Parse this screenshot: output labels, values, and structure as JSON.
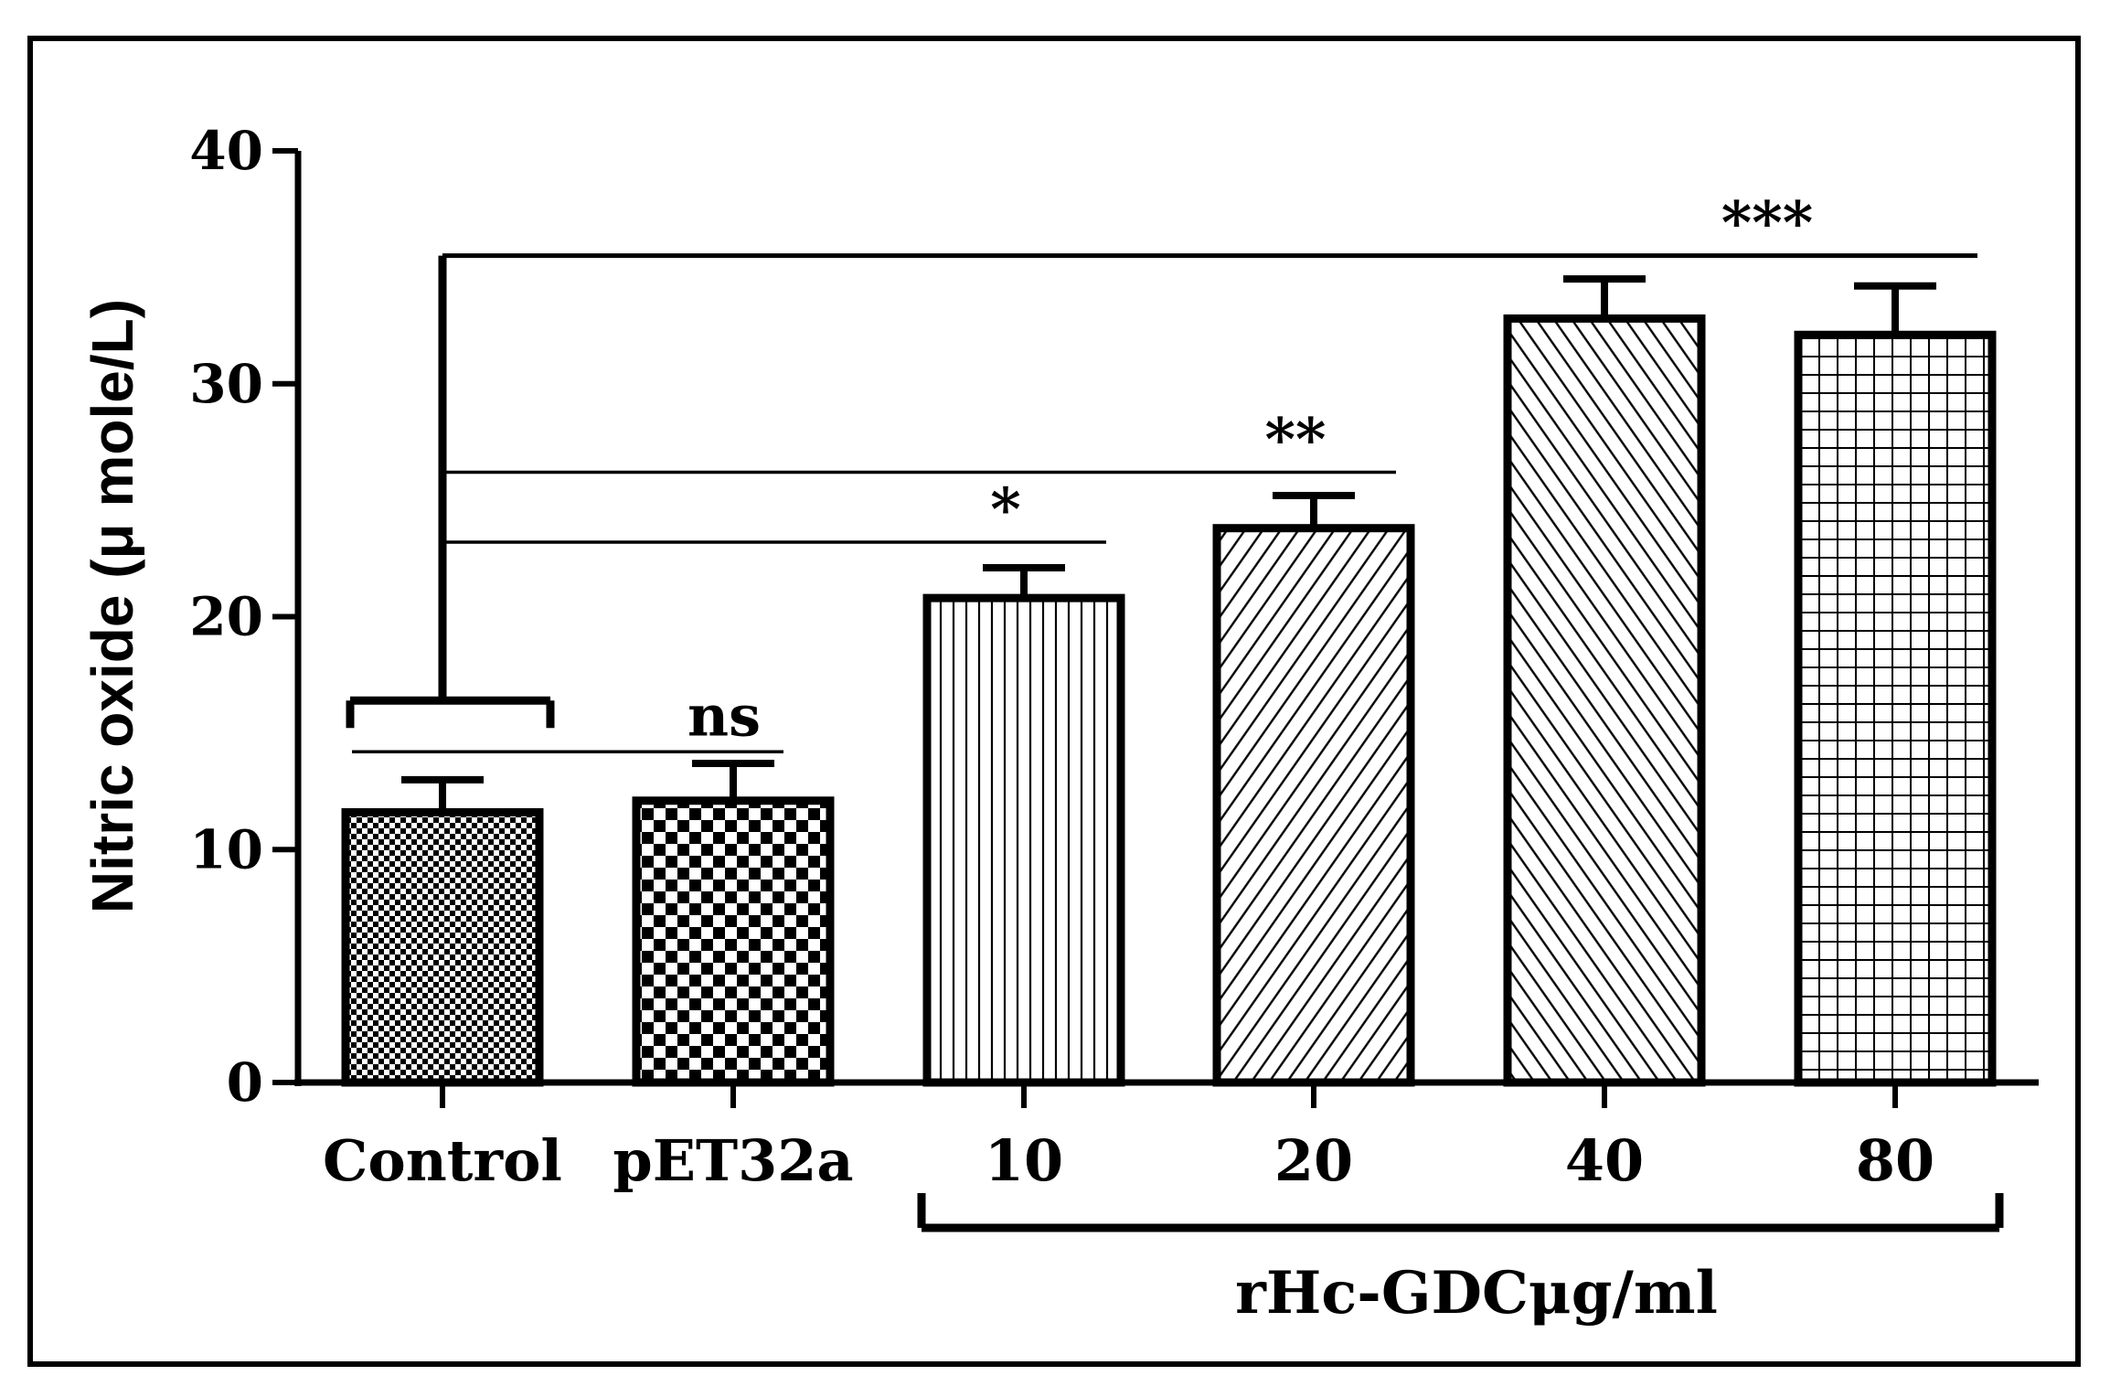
{
  "chart_data": {
    "type": "bar",
    "categories": [
      "Control",
      "pET32a",
      "10",
      "20",
      "40",
      "80"
    ],
    "values": [
      11.6,
      12.1,
      20.8,
      23.8,
      32.8,
      32.1
    ],
    "errors": [
      1.4,
      1.6,
      1.3,
      1.4,
      1.7,
      2.1
    ],
    "patterns": [
      "checker-fine",
      "checker-coarse",
      "vertical-lines",
      "diagonal-up",
      "diagonal-down",
      "grid"
    ],
    "ylabel": "Nitric oxide  (μ mole/L)",
    "ylim": [
      0,
      40
    ],
    "yticks": [
      0,
      10,
      20,
      30,
      40
    ],
    "grid": false,
    "group_label": "rHc-GDCμg/ml",
    "group_categories": [
      "10",
      "20",
      "40",
      "80"
    ],
    "significance": [
      {
        "label": "ns",
        "from": "Control",
        "to": "pET32a",
        "y": 14.2
      },
      {
        "label": "*",
        "from": "Control",
        "to": "10",
        "y": 23.2
      },
      {
        "label": "**",
        "from": "Control",
        "to": "20",
        "y": 26.2
      },
      {
        "label": "***",
        "from": "Control",
        "to": "80",
        "y": 35.5
      }
    ]
  }
}
